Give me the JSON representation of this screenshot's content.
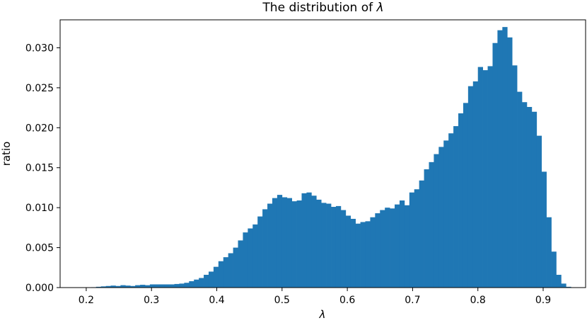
{
  "chart_data": {
    "type": "bar",
    "title_prefix": "The distribution of ",
    "title_symbol": "λ",
    "xlabel": "λ",
    "ylabel": "ratio",
    "xlim": [
      0.16,
      0.965
    ],
    "ylim": [
      0.0,
      0.0335
    ],
    "xticks": [
      "0.2",
      "0.3",
      "0.4",
      "0.5",
      "0.6",
      "0.7",
      "0.8",
      "0.9"
    ],
    "yticks": [
      "0.000",
      "0.005",
      "0.010",
      "0.015",
      "0.020",
      "0.025",
      "0.030"
    ],
    "bar_color": "#1f77b4",
    "bin_start": 0.2,
    "bin_width": 0.0075,
    "values": [
      2e-05,
      5e-05,
      0.0001,
      0.00015,
      0.0002,
      0.00025,
      0.0002,
      0.0003,
      0.00025,
      0.0002,
      0.0003,
      0.00035,
      0.0003,
      0.0004,
      0.0004,
      0.0004,
      0.0004,
      0.0004,
      0.00045,
      0.0005,
      0.0006,
      0.0008,
      0.001,
      0.0012,
      0.0016,
      0.002,
      0.0026,
      0.0033,
      0.0038,
      0.0043,
      0.005,
      0.0059,
      0.0069,
      0.0074,
      0.0079,
      0.0089,
      0.0098,
      0.0105,
      0.0112,
      0.0116,
      0.0113,
      0.0112,
      0.0108,
      0.0109,
      0.0118,
      0.0119,
      0.0115,
      0.011,
      0.0106,
      0.0105,
      0.0101,
      0.0102,
      0.0097,
      0.009,
      0.0086,
      0.008,
      0.0082,
      0.0083,
      0.0088,
      0.0093,
      0.0097,
      0.01,
      0.0099,
      0.0104,
      0.0109,
      0.0103,
      0.0119,
      0.0123,
      0.0134,
      0.0148,
      0.0157,
      0.0167,
      0.0176,
      0.0184,
      0.0193,
      0.0202,
      0.0218,
      0.0231,
      0.0252,
      0.0258,
      0.0276,
      0.0272,
      0.0277,
      0.0306,
      0.0322,
      0.0326,
      0.0313,
      0.0278,
      0.0245,
      0.0232,
      0.0226,
      0.022,
      0.019,
      0.0145,
      0.0088,
      0.0045,
      0.0016,
      0.0005,
      0.0001
    ]
  }
}
